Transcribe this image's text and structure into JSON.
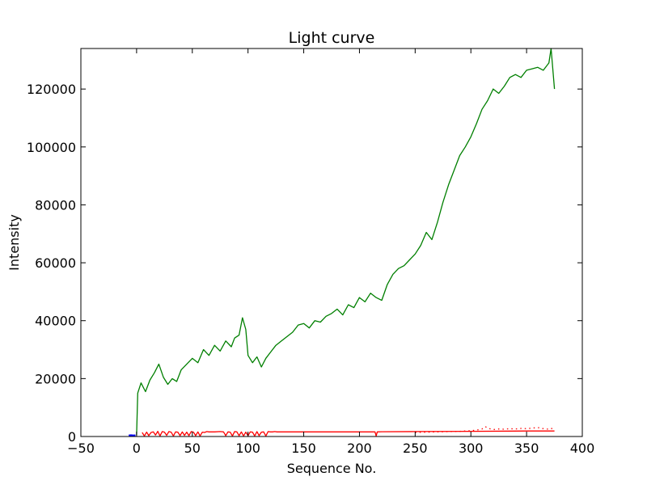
{
  "chart_data": {
    "type": "line",
    "title": "Light curve",
    "xlabel": "Sequence No.",
    "ylabel": "Intensity",
    "xlim": [
      -50,
      400
    ],
    "ylim": [
      0,
      134000
    ],
    "grid": false,
    "legend": "none",
    "x_ticks": [
      -50,
      0,
      50,
      100,
      150,
      200,
      250,
      300,
      350,
      400
    ],
    "y_ticks": [
      0,
      20000,
      40000,
      60000,
      80000,
      100000,
      120000
    ],
    "x_tick_labels": [
      "−50",
      "0",
      "50",
      "100",
      "150",
      "200",
      "250",
      "300",
      "350",
      "400"
    ],
    "y_tick_labels": [
      "0",
      "20000",
      "40000",
      "60000",
      "80000",
      "100000",
      "120000"
    ],
    "series": [
      {
        "color": "#007f00",
        "style": "solid",
        "x": [
          0,
          1,
          4,
          8,
          12,
          16,
          20,
          24,
          28,
          32,
          36,
          40,
          45,
          50,
          55,
          60,
          65,
          70,
          75,
          80,
          85,
          88,
          92,
          95,
          98,
          100,
          104,
          108,
          112,
          116,
          120,
          125,
          130,
          135,
          140,
          145,
          150,
          155,
          160,
          165,
          170,
          175,
          180,
          185,
          190,
          195,
          200,
          205,
          210,
          215,
          220,
          225,
          230,
          235,
          240,
          245,
          250,
          255,
          260,
          265,
          270,
          275,
          280,
          285,
          290,
          295,
          300,
          305,
          310,
          315,
          320,
          325,
          330,
          335,
          340,
          345,
          350,
          355,
          360,
          365,
          370,
          372,
          375
        ],
        "values": [
          500,
          15000,
          18500,
          15500,
          19500,
          22000,
          25000,
          20500,
          18000,
          20000,
          19000,
          23000,
          25000,
          27000,
          25500,
          30000,
          28000,
          31500,
          29500,
          33000,
          31000,
          34000,
          35000,
          41000,
          37000,
          28000,
          25500,
          27500,
          24000,
          27000,
          29000,
          31500,
          33000,
          34500,
          36000,
          38500,
          39000,
          37500,
          40000,
          39500,
          41500,
          42500,
          44000,
          42000,
          45500,
          44500,
          48000,
          46500,
          49500,
          48000,
          47000,
          52500,
          56000,
          58000,
          59000,
          61000,
          63000,
          66000,
          70500,
          68000,
          74000,
          81000,
          87000,
          92000,
          97000,
          100000,
          103500,
          108000,
          113000,
          116000,
          120000,
          118500,
          121000,
          124000,
          125000,
          124000,
          126500,
          127000,
          127500,
          126500,
          129000,
          134000,
          120000
        ]
      },
      {
        "color": "#ff0000",
        "style": "solid",
        "x": [
          5,
          7,
          9,
          11,
          13,
          15,
          17,
          19,
          21,
          23,
          25,
          27,
          29,
          31,
          33,
          35,
          37,
          39,
          41,
          43,
          45,
          47,
          49,
          51,
          53,
          55,
          57,
          59,
          61,
          63,
          65,
          70,
          75,
          78,
          80,
          82,
          84,
          86,
          88,
          90,
          92,
          94,
          96,
          98,
          100,
          102,
          104,
          106,
          108,
          110,
          112,
          114,
          116,
          118,
          120,
          122,
          124,
          126,
          150,
          175,
          200,
          210,
          214,
          215,
          216,
          220,
          250,
          300,
          350,
          375
        ],
        "values": [
          1400,
          200,
          1500,
          300,
          1400,
          1600,
          500,
          1800,
          200,
          1700,
          1500,
          400,
          1700,
          1500,
          200,
          1600,
          1500,
          300,
          1600,
          400,
          1500,
          300,
          1700,
          1500,
          300,
          1600,
          200,
          1500,
          1400,
          1700,
          1600,
          1600,
          1700,
          1600,
          300,
          1600,
          1500,
          200,
          1700,
          1600,
          300,
          1600,
          200,
          1500,
          300,
          1600,
          1500,
          200,
          1700,
          300,
          1500,
          1600,
          200,
          1700,
          1600,
          1600,
          1700,
          1600,
          1600,
          1600,
          1600,
          1600,
          1600,
          200,
          1600,
          1650,
          1700,
          1800,
          1900,
          1900
        ]
      },
      {
        "color": "#ff0000",
        "style": "dotted",
        "x": [
          250,
          270,
          290,
          300,
          305,
          310,
          313,
          316,
          320,
          325,
          330,
          335,
          340,
          345,
          350,
          355,
          360,
          365,
          370,
          375
        ],
        "values": [
          1400,
          1600,
          1800,
          2000,
          2200,
          2600,
          3400,
          2800,
          2400,
          2600,
          2500,
          2700,
          2600,
          2800,
          2700,
          2900,
          3100,
          2700,
          2500,
          3000
        ]
      },
      {
        "color": "#0000ff",
        "style": "solid",
        "x": [
          -7,
          -5,
          -3,
          -1
        ],
        "values": [
          300,
          400,
          300,
          350
        ]
      }
    ]
  }
}
